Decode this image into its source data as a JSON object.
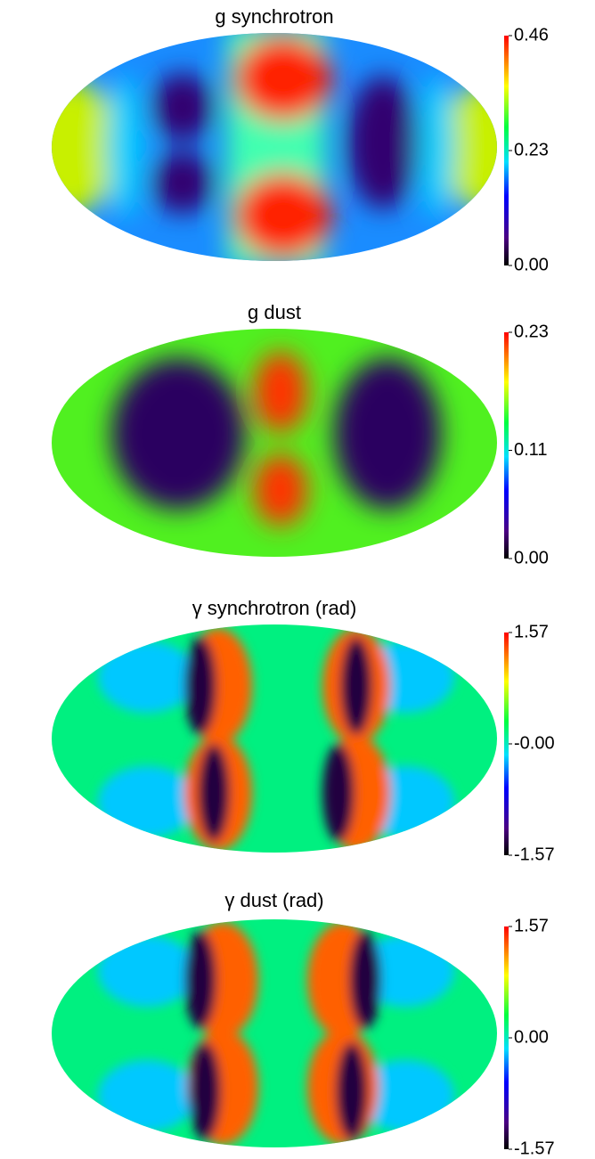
{
  "chart_data": [
    {
      "type": "map",
      "title": "g synchrotron",
      "clim": [
        0,
        0.46
      ],
      "cticks": [
        {
          "value": 0,
          "label": "0.00"
        },
        0.23,
        0.46
      ]
    },
    {
      "type": "map",
      "title": "g dust",
      "clim": [
        0,
        0.23
      ],
      "cticks": [
        {
          "value": 0,
          "label": "0.00"
        },
        0.11,
        0.23
      ]
    },
    {
      "type": "map",
      "title": "γ synchrotron (rad)",
      "clim": [
        -1.57,
        1.57
      ],
      "cticks": [
        -1.57,
        {
          "value": 0,
          "label": "-0.00"
        },
        1.57
      ]
    },
    {
      "type": "map",
      "title": "γ dust (rad)",
      "clim": [
        -1.57,
        1.57
      ],
      "cticks": [
        -1.57,
        {
          "value": 0,
          "label": "0.00"
        },
        1.57
      ]
    }
  ]
}
